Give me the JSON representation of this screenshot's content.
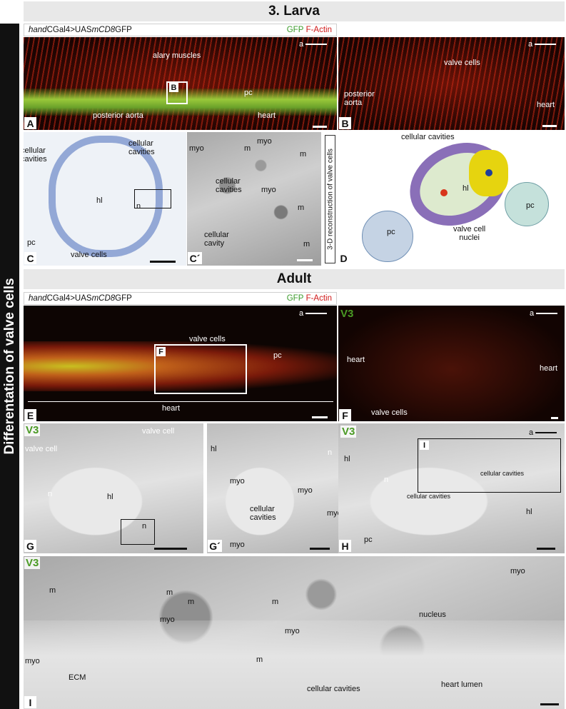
{
  "sidebar": {
    "title": "Differentation of valve cells"
  },
  "sections": {
    "larva_title": "3. Larva",
    "adult_title": "Adult"
  },
  "genotype": {
    "prefix": "hand",
    "middle": "CGal4>UAS",
    "gene": "mCD8",
    "suffix": "GFP"
  },
  "stain": {
    "gfp": "GFP",
    "factin": "F-Actin"
  },
  "colors": {
    "gfp_green": "#3a9a2a",
    "factin_red": "#d01818",
    "v3_green": "#4a9a24",
    "sidebar": "#111111",
    "section_bg": "#e8e8e8"
  },
  "arrow_label": "a",
  "panel_letters": {
    "A": "A",
    "B": "B",
    "C": "C",
    "Cp": "C´",
    "D": "D",
    "E": "E",
    "F": "F",
    "G": "G",
    "Gp": "G´",
    "H": "H",
    "I": "I",
    "B_box": "B",
    "F_box": "F",
    "I_box": "I"
  },
  "v3": "V3",
  "larva": {
    "A": {
      "alary": "alary muscles",
      "pc": "pc",
      "aorta": "posterior aorta",
      "heart": "heart"
    },
    "B": {
      "valve": "valve cells",
      "aorta": "posterior\naorta",
      "heart": "heart"
    },
    "C": {
      "cav1": "cellular\ncavities",
      "cav2": "cellular\ncavities",
      "hl": "hl",
      "n": "n",
      "pc": "pc",
      "valve": "valve cells"
    },
    "Cp": {
      "myo1": "myo",
      "myo2": "myo",
      "m1": "m",
      "m2": "m",
      "m3": "m",
      "m4": "m",
      "cav": "cellular\ncavities",
      "myo3": "myo",
      "cavity": "cellular\ncavity"
    },
    "D": {
      "recon": "3-D reconstruction of valve cells",
      "cav": "cellular cavities",
      "hl": "hl",
      "pc1": "pc",
      "pc2": "pc",
      "nuclei": "valve cell\nnuclei"
    }
  },
  "adult": {
    "E": {
      "valve": "valve cells",
      "pc": "pc",
      "heart": "heart"
    },
    "F": {
      "heart1": "heart",
      "heart2": "heart",
      "valve": "valve cells"
    },
    "G": {
      "valve1": "valve cell",
      "valve2": "valve cell",
      "n1": "n",
      "hl": "hl",
      "n2": "n"
    },
    "Gp": {
      "hl": "hl",
      "n": "n",
      "myo1": "myo",
      "myo2": "myo",
      "cav": "cellular\ncavities",
      "myo3": "myo",
      "myo4": "myo"
    },
    "H": {
      "hl1": "hl",
      "n": "n",
      "cav1": "cellular cavities",
      "cav2": "cellular cavities",
      "hl2": "hl",
      "pc": "pc"
    },
    "I": {
      "myo1": "myo",
      "m1": "m",
      "m2": "m",
      "m3": "m",
      "myo2": "myo",
      "m4": "m",
      "nucleus": "nucleus",
      "myo3": "myo",
      "myo4": "myo",
      "m5": "m",
      "ecm": "ECM",
      "cav": "cellular cavities",
      "lumen": "heart lumen"
    }
  }
}
